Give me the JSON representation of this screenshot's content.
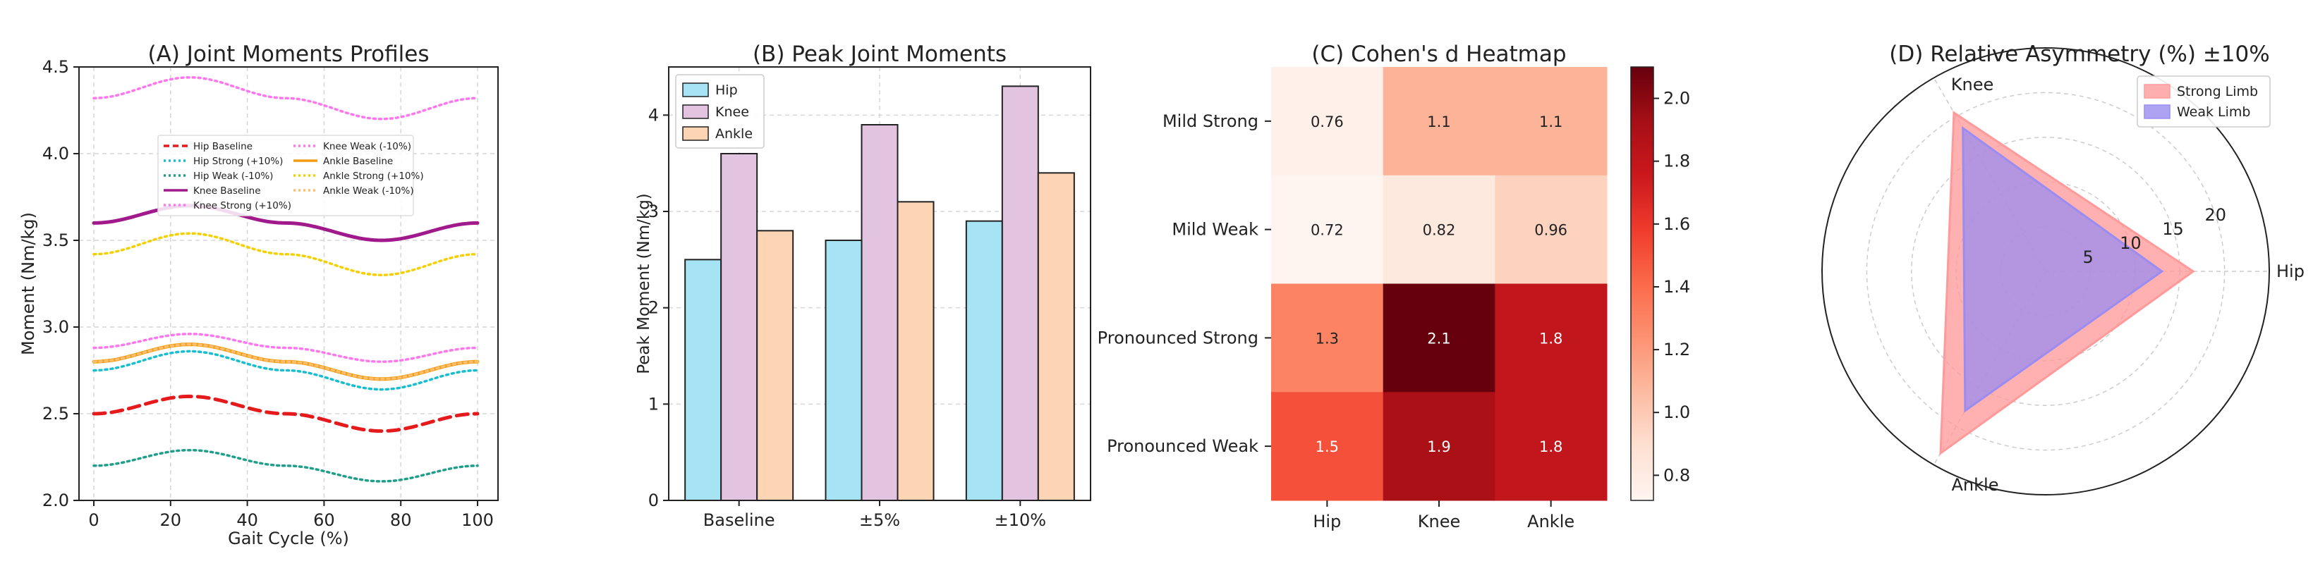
{
  "chart_data": [
    {
      "id": "A",
      "type": "line",
      "title": "(A) Joint Moments Profiles",
      "xlabel": "Gait Cycle (%)",
      "ylabel": "Moment (Nm/kg)",
      "xlim": [
        0,
        100
      ],
      "ylim": [
        2.0,
        4.5
      ],
      "xticks": [
        "0",
        "20",
        "40",
        "60",
        "80",
        "100"
      ],
      "yticks": [
        "2.0",
        "2.5",
        "3.0",
        "3.5",
        "4.0",
        "4.5"
      ],
      "grid": true,
      "legend_position": "upper-middle",
      "x": [
        0,
        25,
        50,
        75,
        100
      ],
      "series": [
        {
          "name": "Hip Baseline",
          "color": "#e41a1c",
          "dash": "dashed",
          "values": [
            2.5,
            2.6,
            2.5,
            2.4,
            2.5
          ]
        },
        {
          "name": "Hip Strong (+10%)",
          "color": "#17becf",
          "dash": "dotted",
          "values": [
            2.75,
            2.86,
            2.75,
            2.64,
            2.75
          ]
        },
        {
          "name": "Hip Weak (-10%)",
          "color": "#1f9e89",
          "dash": "dotted",
          "values": [
            2.2,
            2.29,
            2.2,
            2.11,
            2.2
          ]
        },
        {
          "name": "Knee Baseline",
          "color": "#a01a8c",
          "dash": "solid",
          "values": [
            3.6,
            3.7,
            3.6,
            3.5,
            3.6
          ]
        },
        {
          "name": "Knee Strong (+10%)",
          "color": "#ff77ee",
          "dash": "dotted",
          "values": [
            4.32,
            4.44,
            4.32,
            4.2,
            4.32
          ]
        },
        {
          "name": "Knee Weak (-10%)",
          "color": "#ff77ee",
          "dash": "dotted",
          "values": [
            2.88,
            2.96,
            2.88,
            2.8,
            2.88
          ]
        },
        {
          "name": "Ankle Baseline",
          "color": "#f39c12",
          "dash": "solid",
          "values": [
            2.8,
            2.9,
            2.8,
            2.7,
            2.8
          ]
        },
        {
          "name": "Ankle Strong (+10%)",
          "color": "#f5d000",
          "dash": "dotted",
          "values": [
            3.42,
            3.54,
            3.42,
            3.3,
            3.42
          ]
        },
        {
          "name": "Ankle Weak (-10%)",
          "color": "#fdbf6f",
          "dash": "dotted",
          "values": [
            2.8,
            2.9,
            2.8,
            2.7,
            2.8
          ]
        }
      ]
    },
    {
      "id": "B",
      "type": "bar",
      "title": "(B) Peak Joint Moments",
      "xlabel": "",
      "ylabel": "Peak Moment (Nm/kg)",
      "categories": [
        "Baseline",
        "±5%",
        "±10%"
      ],
      "ylim": [
        0,
        4.5
      ],
      "yticks": [
        "0",
        "1",
        "2",
        "3",
        "4"
      ],
      "grid": true,
      "legend_position": "top-left",
      "series": [
        {
          "name": "Hip",
          "color": "#a6e3f5",
          "values": [
            2.5,
            2.7,
            2.9
          ]
        },
        {
          "name": "Knee",
          "color": "#e2c4e0",
          "values": [
            3.6,
            3.9,
            4.3
          ]
        },
        {
          "name": "Ankle",
          "color": "#fdd5b5",
          "values": [
            2.8,
            3.1,
            3.4
          ]
        }
      ]
    },
    {
      "id": "C",
      "type": "heatmap",
      "title": "(C) Cohen's d Heatmap",
      "rows": [
        "Mild Strong",
        "Mild Weak",
        "Pronounced Strong",
        "Pronounced Weak"
      ],
      "cols": [
        "Hip",
        "Knee",
        "Ankle"
      ],
      "values": [
        [
          0.76,
          1.1,
          1.1
        ],
        [
          0.72,
          0.82,
          0.96
        ],
        [
          1.3,
          2.1,
          1.8
        ],
        [
          1.5,
          1.9,
          1.8
        ]
      ],
      "labels": [
        [
          "0.76",
          "1.1",
          "1.1"
        ],
        [
          "0.72",
          "0.82",
          "0.96"
        ],
        [
          "1.3",
          "2.1",
          "1.8"
        ],
        [
          "1.5",
          "1.9",
          "1.8"
        ]
      ],
      "colorbar": {
        "min": 0.72,
        "max": 2.1,
        "ticks": [
          "0.8",
          "1.0",
          "1.2",
          "1.4",
          "1.6",
          "1.8",
          "2.0"
        ]
      }
    },
    {
      "id": "D",
      "type": "radar",
      "title": "(D) Relative Asymmetry (%) ±10%",
      "axes": [
        "Hip",
        "Knee",
        "Ankle"
      ],
      "rlim": [
        0,
        25
      ],
      "rticks": [
        "5",
        "10",
        "15",
        "20"
      ],
      "legend_position": "top-right",
      "series": [
        {
          "name": "Strong Limb",
          "color": "#ff9a9a",
          "values": [
            16.5,
            20.5,
            23.5
          ]
        },
        {
          "name": "Weak Limb",
          "color": "#9a8cf0",
          "values": [
            13.0,
            18.5,
            18.0
          ]
        }
      ]
    }
  ]
}
